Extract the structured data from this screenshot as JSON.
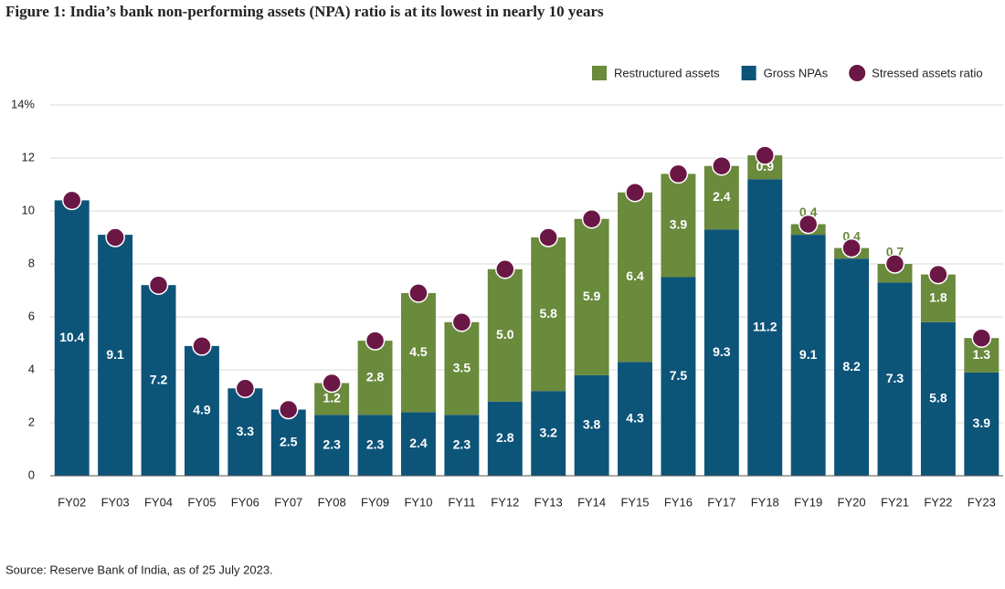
{
  "chart_data": {
    "type": "bar",
    "title": "Figure 1: India’s bank non-performing assets (NPA) ratio is at its lowest in nearly 10 years",
    "source": "Source: Reserve Bank of India, as of 25 July 2023.",
    "categories": [
      "FY02",
      "FY03",
      "FY04",
      "FY05",
      "FY06",
      "FY07",
      "FY08",
      "FY09",
      "FY10",
      "FY11",
      "FY12",
      "FY13",
      "FY14",
      "FY15",
      "FY16",
      "FY17",
      "FY18",
      "FY19",
      "FY20",
      "FY21",
      "FY22",
      "FY23"
    ],
    "series": [
      {
        "name": "Restructured assets",
        "type": "bar",
        "color": "#6a8a3c",
        "values": [
          null,
          null,
          null,
          null,
          null,
          null,
          1.2,
          2.8,
          4.5,
          3.5,
          5.0,
          5.8,
          5.9,
          6.4,
          3.9,
          2.4,
          0.9,
          0.4,
          0.4,
          0.7,
          1.8,
          1.3
        ],
        "value_labels": [
          null,
          null,
          null,
          null,
          null,
          null,
          "1.2",
          "2.8",
          "4.5",
          "3.5",
          "5.0",
          "5.8",
          "5.9",
          "6.4",
          "3.9",
          "2.4",
          "0.9",
          "0.4",
          "0.4",
          "0.7",
          "1.8",
          "1.3"
        ]
      },
      {
        "name": "Gross NPAs",
        "type": "bar",
        "color": "#0d5479",
        "values": [
          10.4,
          9.1,
          7.2,
          4.9,
          3.3,
          2.5,
          2.3,
          2.3,
          2.4,
          2.3,
          2.8,
          3.2,
          3.8,
          4.3,
          7.5,
          9.3,
          11.2,
          9.1,
          8.2,
          7.3,
          5.8,
          3.9
        ]
      },
      {
        "name": "Stressed assets ratio",
        "type": "scatter",
        "color": "#6b1746",
        "values": [
          10.4,
          9.0,
          7.2,
          4.9,
          3.3,
          2.5,
          3.5,
          5.1,
          6.9,
          5.8,
          7.8,
          9.0,
          9.7,
          10.7,
          11.4,
          11.7,
          12.1,
          9.5,
          8.6,
          8.0,
          7.6,
          5.2
        ]
      }
    ],
    "ylim": [
      0,
      14
    ],
    "yticks": [
      0,
      2,
      4,
      6,
      8,
      10,
      12,
      {
        "value": 14,
        "label": "14%"
      }
    ]
  }
}
